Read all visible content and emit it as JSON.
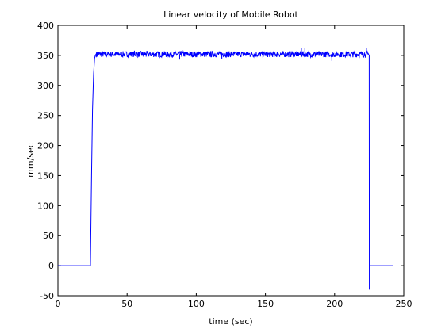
{
  "chart_data": {
    "type": "line",
    "title": "Linear velocity of Mobile Robot",
    "xlabel": "time (sec)",
    "ylabel": "mm/sec",
    "xlim": [
      0,
      250
    ],
    "ylim": [
      -50,
      400
    ],
    "xticks": [
      0,
      50,
      100,
      150,
      200,
      250
    ],
    "yticks": [
      -50,
      0,
      50,
      100,
      150,
      200,
      250,
      300,
      350,
      400
    ],
    "grid": false,
    "legend": "none",
    "series": [
      {
        "color": "#0000ff",
        "noise_amplitude": 5,
        "x": [
          0,
          23.5,
          23.8,
          24.3,
          25,
          25.8,
          26.5,
          27,
          27.5,
          100,
          175,
          222,
          224.5,
          225,
          225.1,
          225.3,
          242
        ],
        "y": [
          0,
          0,
          60,
          150,
          260,
          320,
          345,
          350,
          352,
          352,
          352,
          352,
          352,
          350,
          -40,
          0,
          0
        ]
      }
    ],
    "spikes": [
      {
        "x": 28.5,
        "y": 356
      },
      {
        "x": 55.3,
        "y": 358
      },
      {
        "x": 88.0,
        "y": 343
      },
      {
        "x": 118.5,
        "y": 344
      },
      {
        "x": 148.0,
        "y": 356
      },
      {
        "x": 176.0,
        "y": 362
      },
      {
        "x": 178.5,
        "y": 363
      },
      {
        "x": 198.0,
        "y": 341
      },
      {
        "x": 214.5,
        "y": 358
      },
      {
        "x": 223.0,
        "y": 363
      }
    ]
  }
}
